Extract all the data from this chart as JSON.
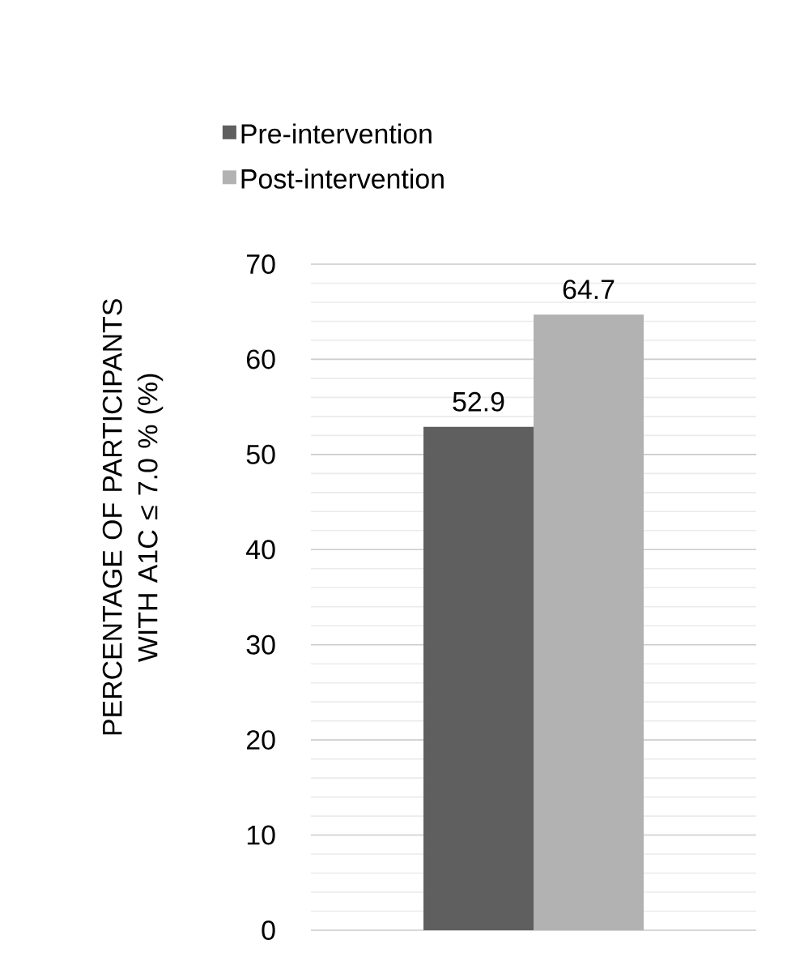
{
  "chart_data": {
    "type": "bar",
    "ylabel": "PERCENTAGE OF PARTICIPANTS WITH A1C ≤ 7.0 % (%)",
    "categories": [
      null
    ],
    "series": [
      {
        "name": "Pre-intervention",
        "color": "#5f5f5f",
        "values": [
          52.9
        ]
      },
      {
        "name": "Post-intervention",
        "color": "#b2b2b2",
        "values": [
          64.7
        ]
      }
    ],
    "ylim": [
      0,
      70
    ],
    "yticks": [
      0,
      10,
      20,
      30,
      40,
      50,
      60,
      70
    ],
    "grid": "y",
    "legend": "top left",
    "data_labels": true
  }
}
